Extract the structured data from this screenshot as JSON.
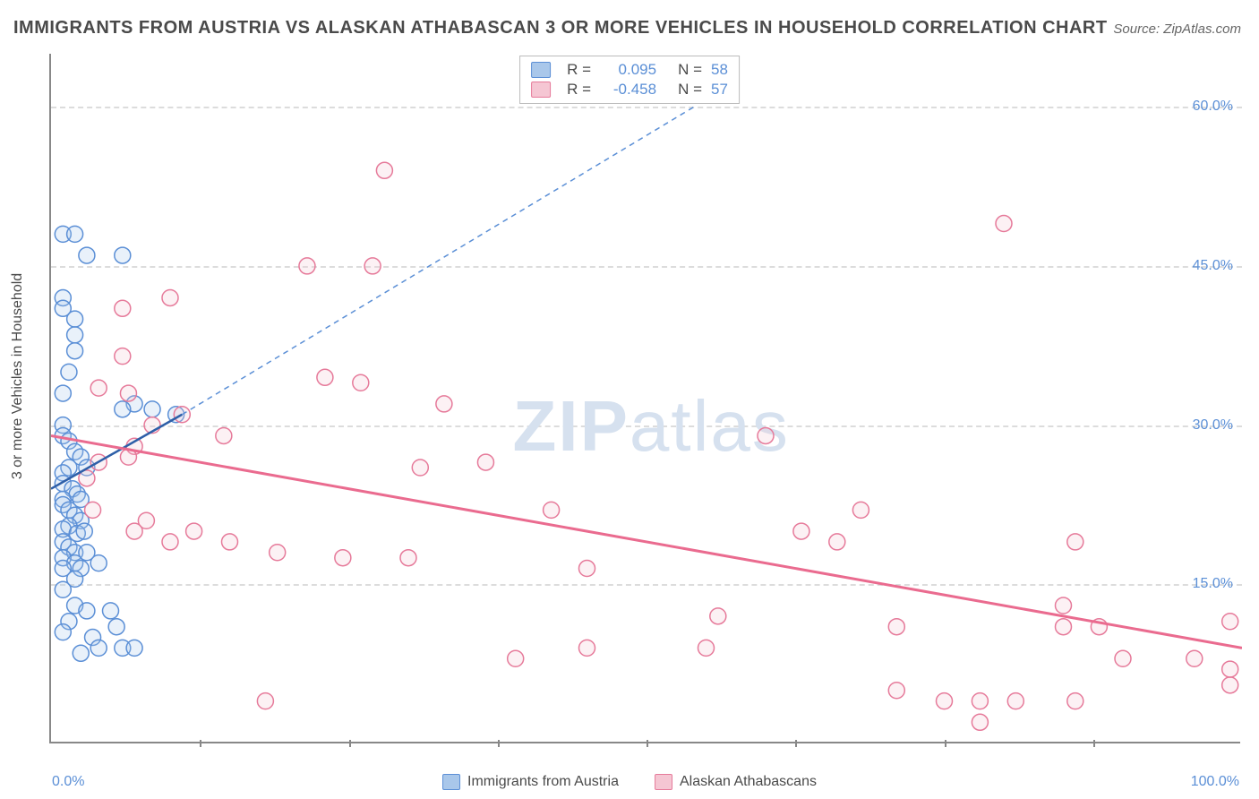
{
  "title": "IMMIGRANTS FROM AUSTRIA VS ALASKAN ATHABASCAN 3 OR MORE VEHICLES IN HOUSEHOLD CORRELATION CHART",
  "source_label": "Source:",
  "source_value": "ZipAtlas.com",
  "watermark_zip": "ZIP",
  "watermark_rest": "atlas",
  "chart": {
    "type": "scatter",
    "ylabel": "3 or more Vehicles in Household",
    "xlim": [
      0,
      100
    ],
    "ylim": [
      0,
      65
    ],
    "xtick_labels": [
      "0.0%",
      "100.0%"
    ],
    "xtick_positions": [
      0,
      100
    ],
    "xminor_ticks": [
      12.5,
      25,
      37.5,
      50,
      62.5,
      75,
      87.5
    ],
    "ytick_labels": [
      "15.0%",
      "30.0%",
      "45.0%",
      "60.0%"
    ],
    "ytick_positions": [
      15,
      30,
      45,
      60
    ],
    "grid_color": "#dcdcdc",
    "axis_color": "#888888",
    "background_color": "#ffffff",
    "label_color": "#5b8fd6",
    "title_fontsize": 20,
    "ylabel_fontsize": 16,
    "tick_fontsize": 16,
    "marker_radius": 9,
    "marker_stroke_width": 1.5,
    "marker_fill_opacity": 0.25,
    "series": [
      {
        "name": "Immigrants from Austria",
        "fill": "#a9c7ea",
        "stroke": "#5b8fd6",
        "R": "0.095",
        "N": "58",
        "regression": {
          "x1": 0,
          "y1": 24,
          "x2": 11,
          "y2": 31,
          "color": "#2e5fa8",
          "width": 2.5,
          "dash": "none"
        },
        "regression_ext": {
          "x1": 11,
          "y1": 31,
          "x2": 54,
          "y2": 60,
          "color": "#5b8fd6",
          "width": 1.5,
          "dash": "6,5"
        },
        "points": [
          [
            1,
            48
          ],
          [
            2,
            48
          ],
          [
            3,
            46
          ],
          [
            6,
            46
          ],
          [
            1,
            42
          ],
          [
            1,
            41
          ],
          [
            2,
            40
          ],
          [
            2,
            38.5
          ],
          [
            2,
            37
          ],
          [
            1.5,
            35
          ],
          [
            1,
            33
          ],
          [
            7,
            32
          ],
          [
            6,
            31.5
          ],
          [
            8.5,
            31.5
          ],
          [
            10.5,
            31
          ],
          [
            1,
            30
          ],
          [
            1,
            29
          ],
          [
            1.5,
            28.5
          ],
          [
            2,
            27.5
          ],
          [
            2.5,
            27
          ],
          [
            1.5,
            26
          ],
          [
            3,
            26
          ],
          [
            1,
            25.5
          ],
          [
            1,
            24.5
          ],
          [
            1.8,
            24
          ],
          [
            2.2,
            23.5
          ],
          [
            1,
            23
          ],
          [
            2.5,
            23
          ],
          [
            1,
            22.5
          ],
          [
            1.5,
            22
          ],
          [
            2,
            21.5
          ],
          [
            2.5,
            21
          ],
          [
            1.5,
            20.5
          ],
          [
            1,
            20.2
          ],
          [
            2.2,
            19.8
          ],
          [
            2.8,
            20
          ],
          [
            1,
            19
          ],
          [
            1.5,
            18.5
          ],
          [
            2,
            18
          ],
          [
            3,
            18
          ],
          [
            1,
            17.5
          ],
          [
            2,
            17
          ],
          [
            2.5,
            16.5
          ],
          [
            4,
            17
          ],
          [
            1,
            16.5
          ],
          [
            2,
            15.5
          ],
          [
            1,
            14.5
          ],
          [
            2,
            13
          ],
          [
            3,
            12.5
          ],
          [
            5,
            12.5
          ],
          [
            1.5,
            11.5
          ],
          [
            5.5,
            11
          ],
          [
            1,
            10.5
          ],
          [
            3.5,
            10
          ],
          [
            4,
            9
          ],
          [
            6,
            9
          ],
          [
            7,
            9
          ],
          [
            2.5,
            8.5
          ]
        ]
      },
      {
        "name": "Alaskan Athabascans",
        "fill": "#f5c6d3",
        "stroke": "#e67a9a",
        "R": "-0.458",
        "N": "57",
        "regression": {
          "x1": 0,
          "y1": 29,
          "x2": 100,
          "y2": 9,
          "color": "#ea6b8f",
          "width": 3,
          "dash": "none"
        },
        "points": [
          [
            28,
            54
          ],
          [
            80,
            49
          ],
          [
            10,
            42
          ],
          [
            6,
            41
          ],
          [
            21.5,
            45
          ],
          [
            27,
            45
          ],
          [
            23,
            34.5
          ],
          [
            26,
            34
          ],
          [
            6,
            36.5
          ],
          [
            4,
            33.5
          ],
          [
            6.5,
            33
          ],
          [
            33,
            32
          ],
          [
            11,
            31
          ],
          [
            8.5,
            30
          ],
          [
            14.5,
            29
          ],
          [
            7,
            28
          ],
          [
            6.5,
            27
          ],
          [
            4,
            26.5
          ],
          [
            3,
            25
          ],
          [
            31,
            26
          ],
          [
            36.5,
            26.5
          ],
          [
            42,
            22
          ],
          [
            60,
            29
          ],
          [
            3.5,
            22
          ],
          [
            8,
            21
          ],
          [
            7,
            20
          ],
          [
            12,
            20
          ],
          [
            10,
            19
          ],
          [
            15,
            19
          ],
          [
            68,
            22
          ],
          [
            66,
            19
          ],
          [
            86,
            19
          ],
          [
            63,
            20
          ],
          [
            19,
            18
          ],
          [
            24.5,
            17.5
          ],
          [
            30,
            17.5
          ],
          [
            45,
            16.5
          ],
          [
            39,
            8
          ],
          [
            45,
            9
          ],
          [
            56,
            12
          ],
          [
            71,
            11
          ],
          [
            85,
            11
          ],
          [
            18,
            4
          ],
          [
            55,
            9
          ],
          [
            71,
            5
          ],
          [
            75,
            4
          ],
          [
            78,
            4
          ],
          [
            78,
            2
          ],
          [
            81,
            4
          ],
          [
            85,
            13
          ],
          [
            86,
            4
          ],
          [
            88,
            11
          ],
          [
            90,
            8
          ],
          [
            96,
            8
          ],
          [
            99,
            11.5
          ],
          [
            99,
            5.5
          ],
          [
            99,
            7
          ]
        ]
      }
    ]
  },
  "legend": {
    "series1_label": "Immigrants from Austria",
    "series2_label": "Alaskan Athabascans"
  }
}
